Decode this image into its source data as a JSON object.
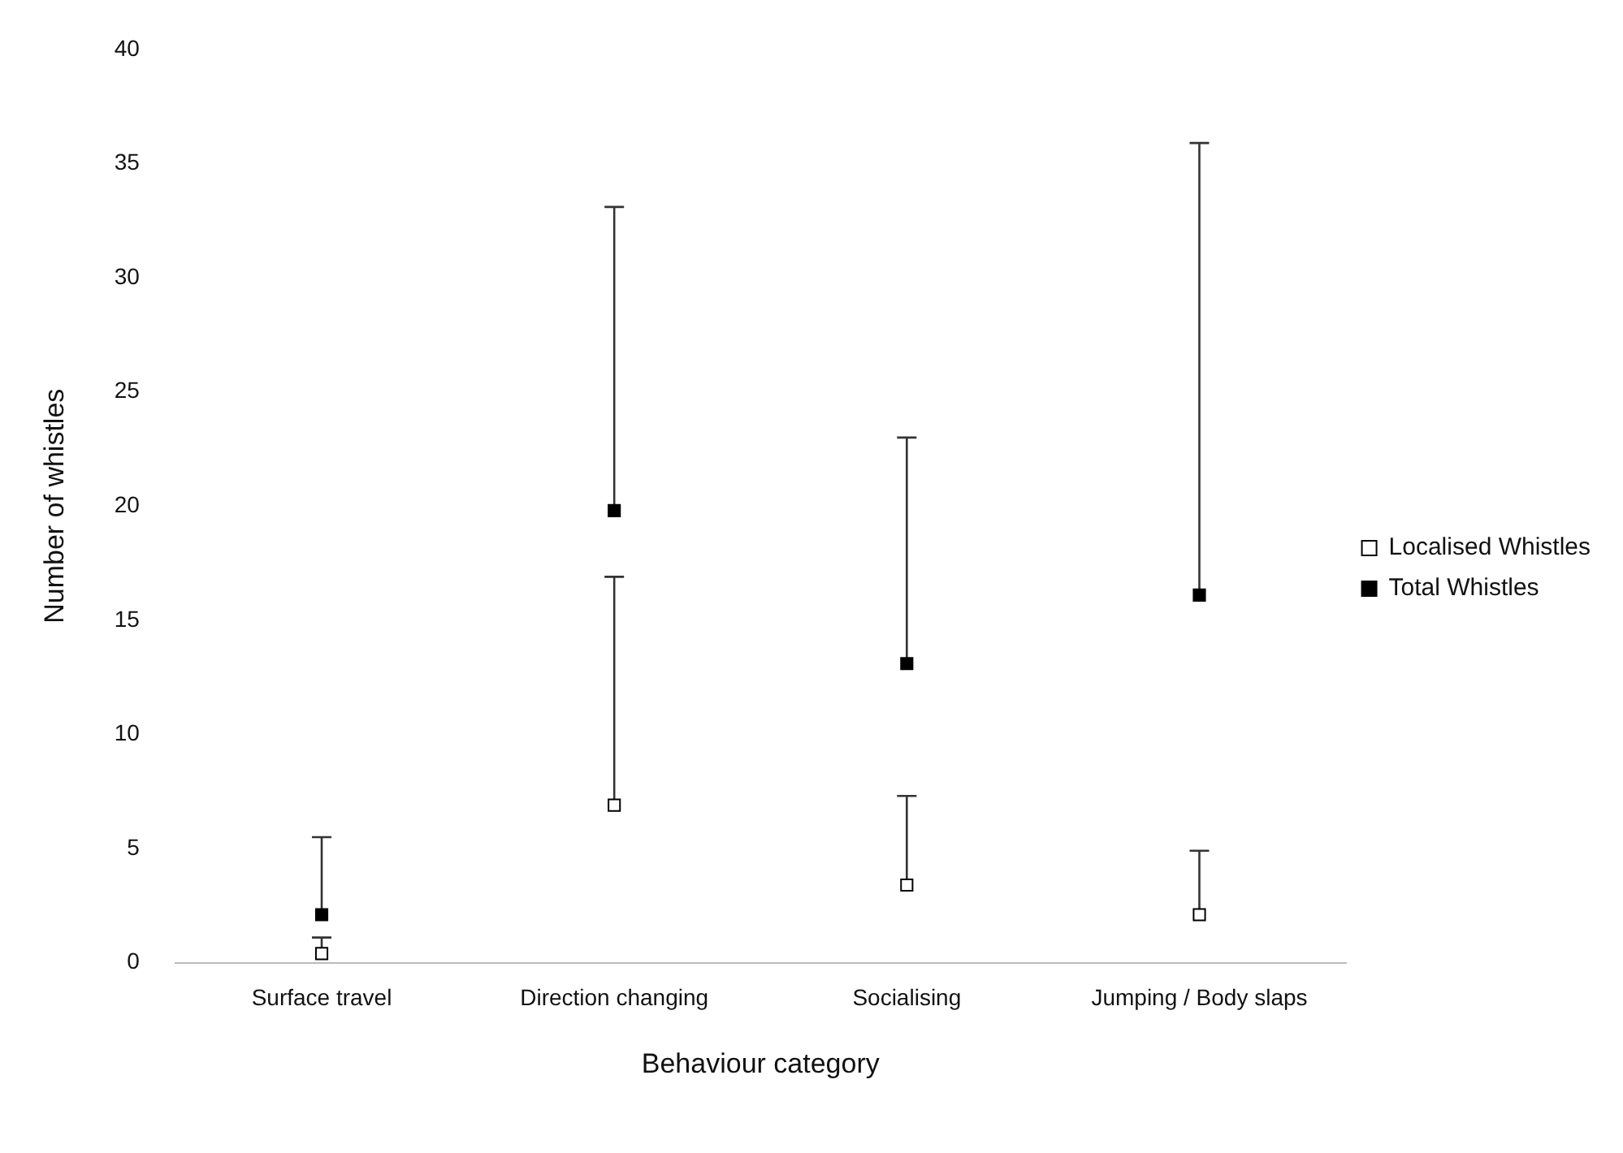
{
  "chart_data": {
    "type": "scatter",
    "xlabel": "Behaviour category",
    "ylabel": "Number of whistles",
    "categories": [
      "Surface travel",
      "Direction changing",
      "Socialising",
      "Jumping / Body slaps"
    ],
    "series": [
      {
        "name": "Localised Whistles",
        "color": "#ffffff",
        "values": [
          0.4,
          6.9,
          3.4,
          2.1
        ],
        "errors": [
          [
            0.4,
            1.1
          ],
          [
            6.9,
            16.9
          ],
          [
            3.4,
            7.3
          ],
          [
            2.1,
            4.9
          ]
        ]
      },
      {
        "name": "Total Whistles",
        "color": "#000000",
        "values": [
          2.1,
          19.8,
          13.1,
          16.1
        ],
        "errors": [
          [
            2.1,
            5.5
          ],
          [
            19.8,
            33.1
          ],
          [
            13.1,
            23.0
          ],
          [
            16.1,
            35.9
          ]
        ]
      }
    ],
    "ylim": [
      0,
      40
    ],
    "yticks": [
      0,
      5,
      10,
      15,
      20,
      25,
      30,
      35,
      40
    ],
    "grid": false,
    "legend": "right",
    "marker": "square"
  }
}
